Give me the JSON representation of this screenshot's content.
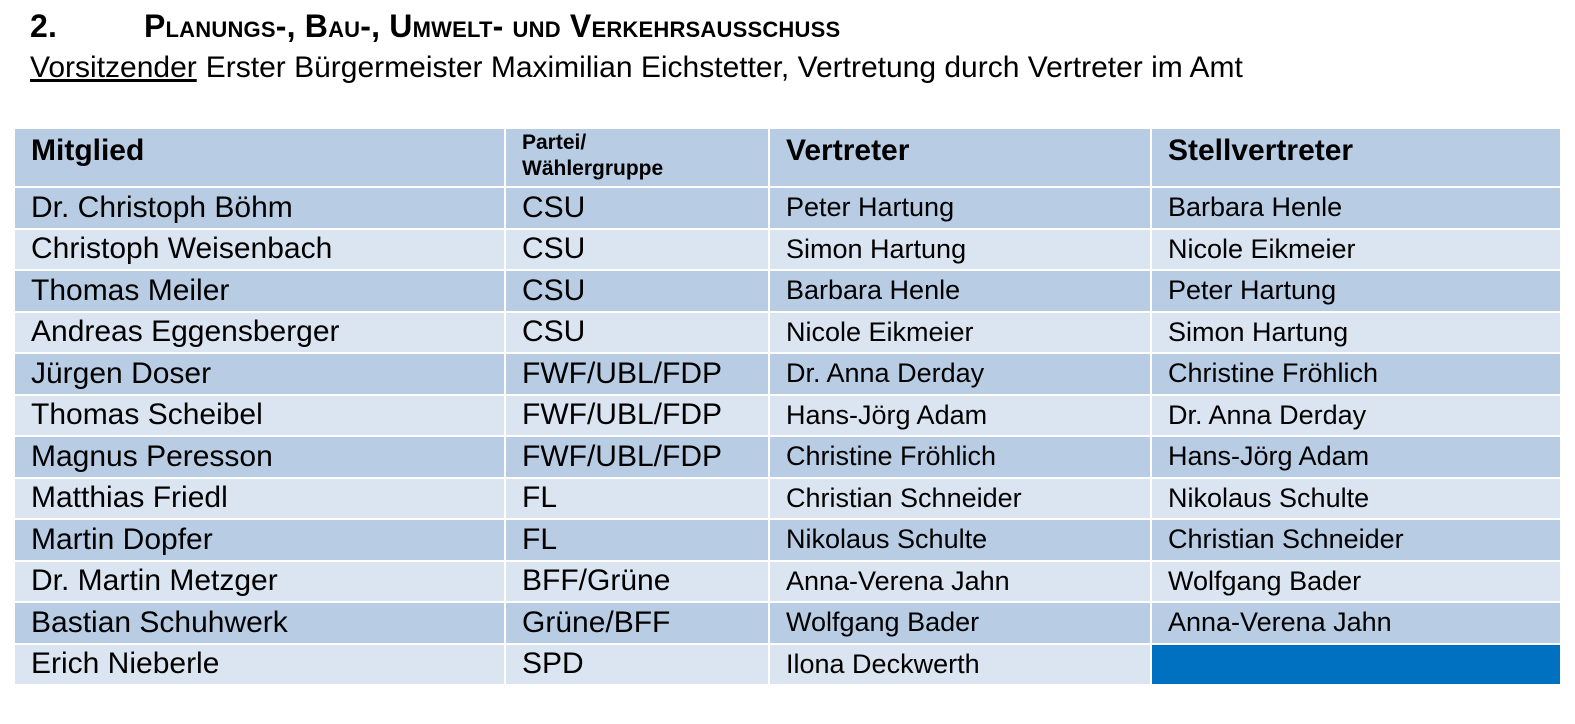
{
  "heading": {
    "number": "2.",
    "title": "Planungs-, Bau-, Umwelt- und Verkehrsausschuss"
  },
  "chair": {
    "label": "Vorsitzender",
    "text": "Erster Bürgermeister Maximilian Eichstetter, Vertretung durch Vertreter im Amt"
  },
  "table": {
    "headers": {
      "member": "Mitglied",
      "party_line1": "Partei/",
      "party_line2": "Wählergruppe",
      "deputy": "Vertreter",
      "second_deputy": "Stellvertreter"
    },
    "rows": [
      {
        "member": "Dr. Christoph Böhm",
        "party": "CSU",
        "deputy": "Peter Hartung",
        "second_deputy": "Barbara Henle"
      },
      {
        "member": "Christoph Weisenbach",
        "party": "CSU",
        "deputy": "Simon Hartung",
        "second_deputy": "Nicole Eikmeier"
      },
      {
        "member": "Thomas Meiler",
        "party": "CSU",
        "deputy": "Barbara Henle",
        "second_deputy": "Peter Hartung"
      },
      {
        "member": "Andreas Eggensberger",
        "party": "CSU",
        "deputy": "Nicole Eikmeier",
        "second_deputy": "Simon Hartung"
      },
      {
        "member": "Jürgen Doser",
        "party": "FWF/UBL/FDP",
        "deputy": "Dr. Anna Derday",
        "second_deputy": "Christine Fröhlich"
      },
      {
        "member": "Thomas Scheibel",
        "party": "FWF/UBL/FDP",
        "deputy": "Hans-Jörg Adam",
        "second_deputy": "Dr. Anna Derday"
      },
      {
        "member": "Magnus Peresson",
        "party": "FWF/UBL/FDP",
        "deputy": "Christine Fröhlich",
        "second_deputy": "Hans-Jörg Adam"
      },
      {
        "member": "Matthias Friedl",
        "party": "FL",
        "deputy": "Christian Schneider",
        "second_deputy": "Nikolaus Schulte"
      },
      {
        "member": "Martin Dopfer",
        "party": "FL",
        "deputy": "Nikolaus Schulte",
        "second_deputy": "Christian Schneider"
      },
      {
        "member": "Dr. Martin Metzger",
        "party": "BFF/Grüne",
        "deputy": "Anna-Verena Jahn",
        "second_deputy": "Wolfgang Bader"
      },
      {
        "member": "Bastian Schuhwerk",
        "party": "Grüne/BFF",
        "deputy": "Wolfgang Bader",
        "second_deputy": "Anna-Verena Jahn"
      },
      {
        "member": "Erich Nieberle",
        "party": "SPD",
        "deputy": "Ilona Deckwerth",
        "second_deputy": ""
      }
    ]
  },
  "colors": {
    "header_row": "#b8cce4",
    "row_dark": "#b8cce4",
    "row_light": "#dbe5f1",
    "highlighted_empty_cell": "#0070c0"
  }
}
